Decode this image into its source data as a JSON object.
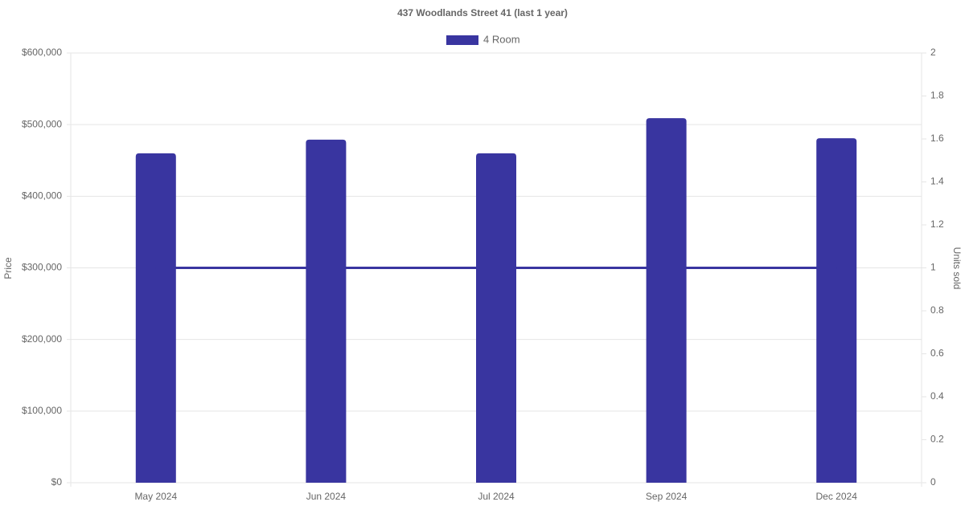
{
  "chart_data": {
    "type": "bar_line",
    "title": "437 Woodlands Street 41 (last 1 year)",
    "categories": [
      "May 2024",
      "Jun 2024",
      "Jul 2024",
      "Sep 2024",
      "Dec 2024"
    ],
    "series": [
      {
        "name": "4 Room",
        "type": "bar",
        "color": "#3935a0",
        "values": [
          460000,
          479000,
          460000,
          509000,
          481000
        ]
      },
      {
        "type": "line",
        "axis": "y2",
        "color": "#3935a0",
        "values": [
          1,
          1,
          1,
          1,
          1
        ]
      }
    ],
    "ylabel": "Price",
    "y2label": "Units sold",
    "ylim": [
      0,
      600000
    ],
    "yticks": [
      {
        "value": 0,
        "label": "$0"
      },
      {
        "value": 100000,
        "label": "$100,000"
      },
      {
        "value": 200000,
        "label": "$200,000"
      },
      {
        "value": 300000,
        "label": "$300,000"
      },
      {
        "value": 400000,
        "label": "$400,000"
      },
      {
        "value": 500000,
        "label": "$500,000"
      },
      {
        "value": 600000,
        "label": "$600,000"
      }
    ],
    "y2lim": [
      0,
      2
    ],
    "y2ticks": [
      0,
      0.2,
      0.4,
      0.6,
      0.8,
      1,
      1.2,
      1.4,
      1.6,
      1.8,
      2
    ],
    "grid": true
  }
}
